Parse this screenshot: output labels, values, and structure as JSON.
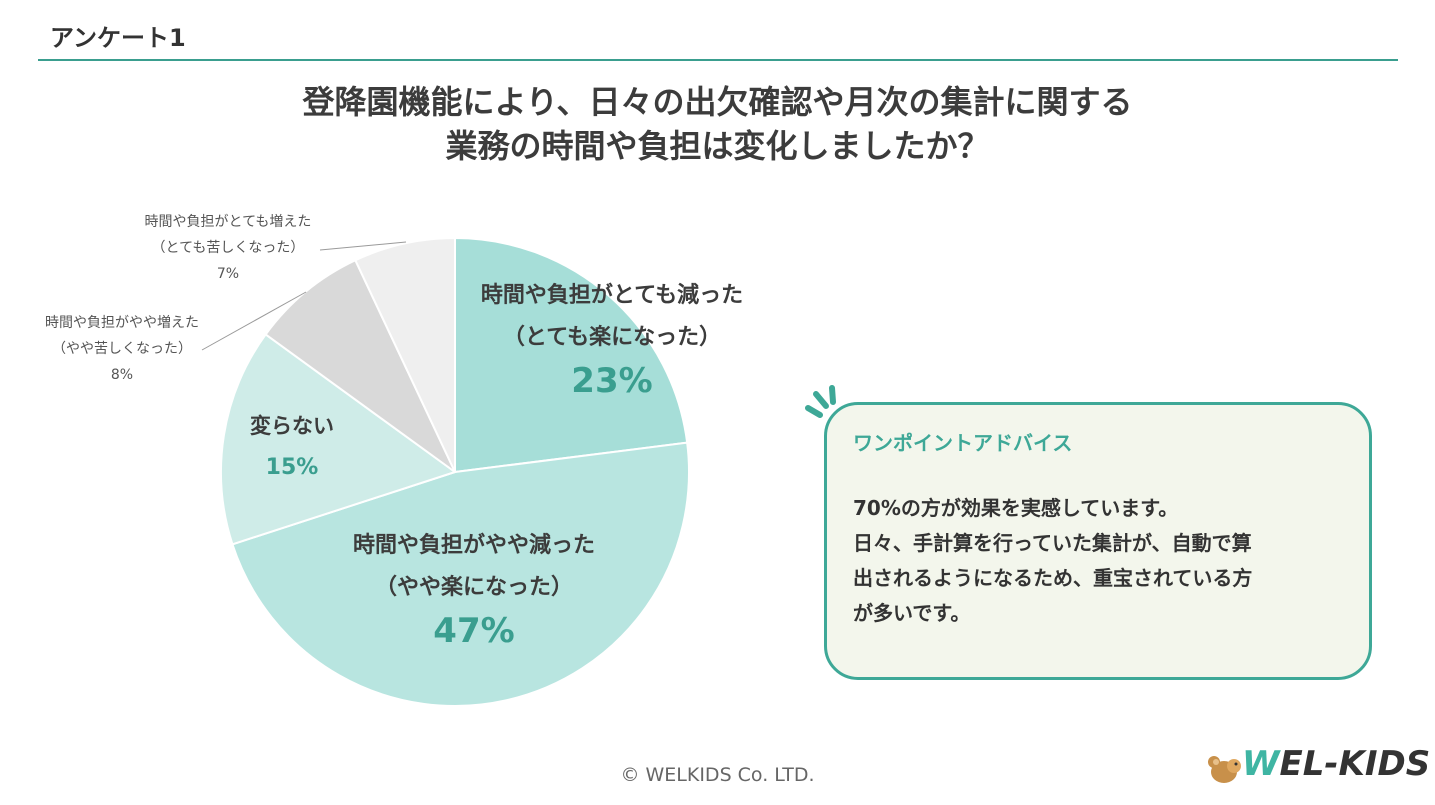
{
  "header": {
    "section_label": "アンケート1"
  },
  "question": {
    "line1": "登降園機能により、日々の出欠確認や月次の集計に関する",
    "line2": "業務の時間や負担は変化しましたか？"
  },
  "chart_data": {
    "type": "pie",
    "start_angle_deg": 0,
    "direction": "clockwise",
    "slices": [
      {
        "label": [
          "時間や負担がとても減った",
          "（とても楽になった）"
        ],
        "value": 23,
        "value_label": "23%",
        "color": "#a6ded8",
        "label_style": "inside"
      },
      {
        "label": [
          "時間や負担がやや減った",
          "（やや楽になった）"
        ],
        "value": 47,
        "value_label": "47%",
        "color": "#b8e5e0",
        "label_style": "inside"
      },
      {
        "label": [
          "変らない"
        ],
        "value": 15,
        "value_label": "15%",
        "color": "#cfece8",
        "label_style": "inside"
      },
      {
        "label": [
          "時間や負担がやや増えた",
          "（やや苦しくなった）"
        ],
        "value": 8,
        "value_label": "8%",
        "color": "#d9d9d9",
        "label_style": "callout"
      },
      {
        "label": [
          "時間や負担がとても増えた",
          "（とても苦しくなった）"
        ],
        "value": 7,
        "value_label": "7%",
        "color": "#efefef",
        "label_style": "callout"
      }
    ],
    "colors": {
      "inside_label_text": "#3c3c3c",
      "inside_value_text": "#3a9e8f",
      "callout_text": "#555555"
    }
  },
  "advice": {
    "title": "ワンポイントアドバイス",
    "body": [
      "70%の方が効果を実感しています。",
      "日々、手計算を行っていた集計が、自動で算",
      "出されるようになるため、重宝されている方",
      "が多いです。"
    ],
    "accent_color": "#3ea897"
  },
  "footer": {
    "copyright": "© WELKIDS Co. LTD."
  },
  "logo": {
    "text_w": "W",
    "text_rest": "EL-KIDS"
  }
}
